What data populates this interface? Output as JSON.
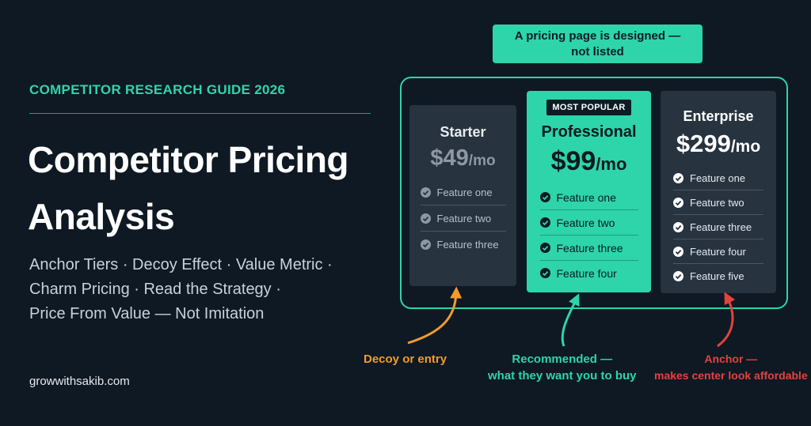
{
  "header": {
    "eyebrow": "COMPETITOR RESEARCH GUIDE 2026",
    "title_lines": [
      "Competitor Pricing",
      "Analysis"
    ],
    "subtitle_lines": [
      "Anchor Tiers · Decoy Effect · Value Metric ·",
      "Charm Pricing · Read the Strategy ·",
      "Price From Value — Not Imitation"
    ],
    "site": "growwithsakib.com"
  },
  "callout_lines": [
    "A pricing page is designed —",
    "not listed"
  ],
  "tiers": [
    {
      "name": "Starter",
      "price": "$49",
      "period": "/mo",
      "features": [
        "Feature one",
        "Feature two",
        "Feature three"
      ]
    },
    {
      "badge": "MOST POPULAR",
      "name": "Professional",
      "price": "$99",
      "period": "/mo",
      "features": [
        "Feature one",
        "Feature two",
        "Feature three",
        "Feature four"
      ]
    },
    {
      "name": "Enterprise",
      "price": "$299",
      "period": "/mo",
      "features": [
        "Feature one",
        "Feature two",
        "Feature three",
        "Feature four",
        "Feature five"
      ]
    }
  ],
  "annotations": [
    {
      "lines": [
        "Decoy or entry"
      ]
    },
    {
      "lines": [
        "Recommended —",
        "what they want you to buy"
      ]
    },
    {
      "lines": [
        "Anchor —",
        "makes center look affordable"
      ]
    }
  ]
}
